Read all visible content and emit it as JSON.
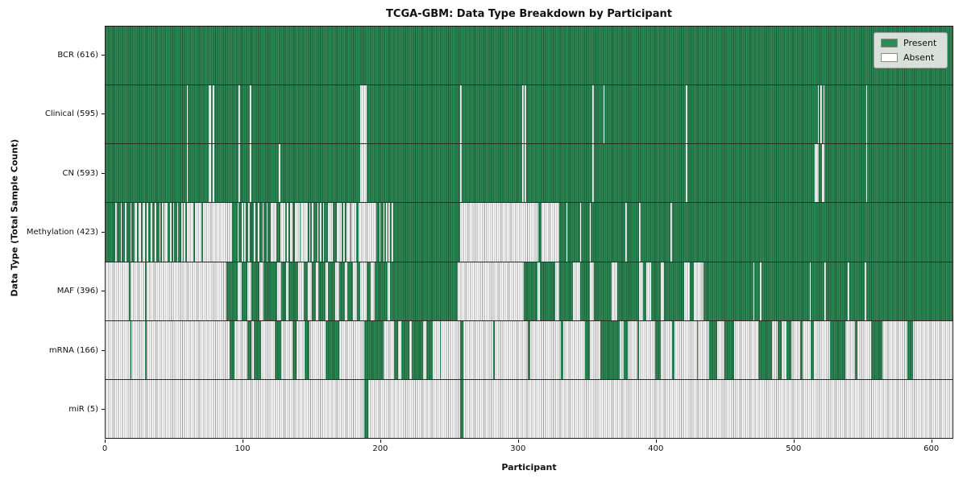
{
  "chart_data": {
    "type": "heatmap",
    "title": "TCGA-GBM: Data Type Breakdown by Participant",
    "xlabel": "Participant",
    "ylabel": "Data Type (Total Sample Count)",
    "x_range": [
      0,
      616
    ],
    "x_ticks": [
      0,
      100,
      200,
      300,
      400,
      500,
      600
    ],
    "grid": false,
    "legend_position": "upper right",
    "colors": {
      "present": "#2e8b57",
      "present_edge": "#1c5736",
      "absent": "#ffffff",
      "absent_edge": "#9b9b9b"
    },
    "legend": [
      {
        "label": "Present",
        "color": "#2e8b57"
      },
      {
        "label": "Absent",
        "color": "#ffffff"
      }
    ],
    "rows": [
      {
        "label": "BCR (616)",
        "name": "bcr",
        "present_count": 616,
        "base": "present",
        "exception": "absent",
        "ranges": []
      },
      {
        "label": "Clinical (595)",
        "name": "clinical",
        "present_count": 595,
        "base": "present",
        "exception": "absent",
        "ranges": [
          [
            59,
            60
          ],
          [
            75,
            77
          ],
          [
            78,
            79
          ],
          [
            97,
            98
          ],
          [
            105,
            106
          ],
          [
            185,
            190
          ],
          [
            258,
            259
          ],
          [
            303,
            304
          ],
          [
            305,
            306
          ],
          [
            354,
            355
          ],
          [
            362,
            363
          ],
          [
            422,
            423
          ],
          [
            518,
            519
          ],
          [
            520,
            521
          ],
          [
            522,
            523
          ],
          [
            553,
            554
          ]
        ]
      },
      {
        "label": "CN (593)",
        "name": "cn",
        "present_count": 593,
        "base": "present",
        "exception": "absent",
        "ranges": [
          [
            59,
            60
          ],
          [
            75,
            77
          ],
          [
            78,
            79
          ],
          [
            97,
            98
          ],
          [
            105,
            106
          ],
          [
            126,
            127
          ],
          [
            185,
            190
          ],
          [
            258,
            259
          ],
          [
            303,
            304
          ],
          [
            305,
            306
          ],
          [
            354,
            355
          ],
          [
            422,
            423
          ],
          [
            516,
            519
          ],
          [
            521,
            523
          ],
          [
            553,
            554
          ]
        ]
      },
      {
        "label": "Methylation (423)",
        "name": "methylation",
        "present_count": 423,
        "base": "present",
        "exception": "absent",
        "ranges": [
          [
            7,
            8
          ],
          [
            11,
            12
          ],
          [
            14,
            15
          ],
          [
            18,
            19
          ],
          [
            21,
            23
          ],
          [
            24,
            26
          ],
          [
            27,
            29
          ],
          [
            30,
            31
          ],
          [
            33,
            34
          ],
          [
            36,
            37
          ],
          [
            39,
            40
          ],
          [
            41,
            42
          ],
          [
            43,
            45
          ],
          [
            47,
            48
          ],
          [
            49,
            50
          ],
          [
            52,
            53
          ],
          [
            55,
            56
          ],
          [
            57,
            58
          ],
          [
            59,
            64
          ],
          [
            65,
            70
          ],
          [
            71,
            92
          ],
          [
            96,
            97
          ],
          [
            99,
            100
          ],
          [
            101,
            102
          ],
          [
            104,
            105
          ],
          [
            108,
            109
          ],
          [
            111,
            112
          ],
          [
            114,
            115
          ],
          [
            117,
            118
          ],
          [
            120,
            124
          ],
          [
            127,
            131
          ],
          [
            132,
            133
          ],
          [
            134,
            136
          ],
          [
            138,
            141
          ],
          [
            142,
            147
          ],
          [
            148,
            149
          ],
          [
            150,
            151
          ],
          [
            154,
            155
          ],
          [
            156,
            157
          ],
          [
            158,
            159
          ],
          [
            162,
            165
          ],
          [
            168,
            172
          ],
          [
            173,
            174
          ],
          [
            175,
            178
          ],
          [
            179,
            182
          ],
          [
            184,
            197
          ],
          [
            199,
            200
          ],
          [
            202,
            203
          ],
          [
            204,
            205
          ],
          [
            206,
            207
          ],
          [
            208,
            209
          ],
          [
            258,
            315
          ],
          [
            317,
            330
          ],
          [
            335,
            336
          ],
          [
            345,
            346
          ],
          [
            352,
            353
          ],
          [
            378,
            379
          ],
          [
            388,
            389
          ],
          [
            411,
            412
          ]
        ]
      },
      {
        "label": "MAF (396)",
        "name": "maf",
        "present_count": 396,
        "base": "present",
        "exception": "absent",
        "ranges": [
          [
            0,
            17
          ],
          [
            18,
            29
          ],
          [
            30,
            88
          ],
          [
            96,
            99
          ],
          [
            103,
            106
          ],
          [
            112,
            115
          ],
          [
            125,
            128
          ],
          [
            131,
            133
          ],
          [
            140,
            144
          ],
          [
            147,
            150
          ],
          [
            153,
            155
          ],
          [
            160,
            162
          ],
          [
            167,
            170
          ],
          [
            174,
            176
          ],
          [
            180,
            183
          ],
          [
            185,
            190
          ],
          [
            193,
            196
          ],
          [
            205,
            207
          ],
          [
            256,
            304
          ],
          [
            314,
            316
          ],
          [
            327,
            330
          ],
          [
            340,
            345
          ],
          [
            352,
            355
          ],
          [
            368,
            372
          ],
          [
            388,
            391
          ],
          [
            393,
            397
          ],
          [
            404,
            406
          ],
          [
            421,
            425
          ],
          [
            428,
            435
          ],
          [
            471,
            472
          ],
          [
            476,
            477
          ],
          [
            512,
            513
          ],
          [
            523,
            524
          ],
          [
            540,
            541
          ],
          [
            552,
            553
          ]
        ]
      },
      {
        "label": "mRNA (166)",
        "name": "mrna",
        "present_count": 166,
        "base": "absent",
        "exception": "present",
        "ranges": [
          [
            18,
            19
          ],
          [
            29,
            30
          ],
          [
            90,
            94
          ],
          [
            103,
            106
          ],
          [
            108,
            113
          ],
          [
            123,
            128
          ],
          [
            136,
            139
          ],
          [
            145,
            148
          ],
          [
            160,
            170
          ],
          [
            188,
            202
          ],
          [
            210,
            213
          ],
          [
            215,
            221
          ],
          [
            223,
            231
          ],
          [
            233,
            238
          ],
          [
            243,
            244
          ],
          [
            258,
            260
          ],
          [
            282,
            283
          ],
          [
            307,
            309
          ],
          [
            331,
            333
          ],
          [
            349,
            352
          ],
          [
            360,
            374
          ],
          [
            377,
            380
          ],
          [
            387,
            388
          ],
          [
            400,
            404
          ],
          [
            412,
            414
          ],
          [
            430,
            431
          ],
          [
            439,
            445
          ],
          [
            450,
            457
          ],
          [
            475,
            485
          ],
          [
            489,
            492
          ],
          [
            495,
            499
          ],
          [
            505,
            507
          ],
          [
            513,
            515
          ],
          [
            527,
            538
          ],
          [
            545,
            547
          ],
          [
            557,
            565
          ],
          [
            583,
            587
          ]
        ]
      },
      {
        "label": "miR (5)",
        "name": "mir",
        "present_count": 5,
        "base": "absent",
        "exception": "present",
        "ranges": [
          [
            188,
            191
          ],
          [
            258,
            260
          ]
        ]
      }
    ]
  }
}
